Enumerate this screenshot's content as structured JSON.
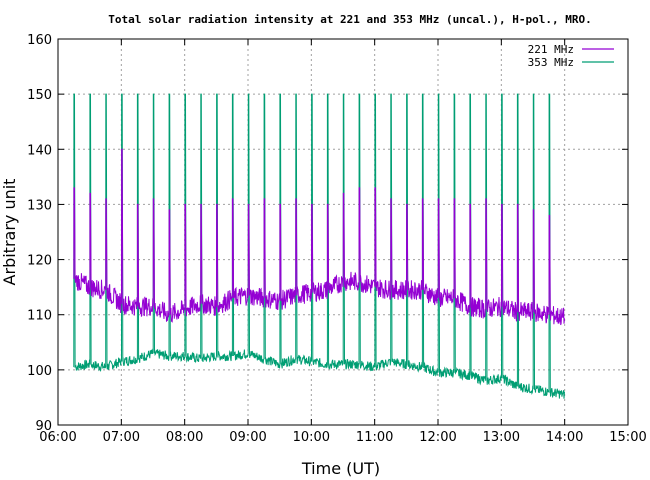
{
  "chart_data": {
    "type": "line",
    "title": "Total solar radiation intensity at 221 and 353 MHz (uncal.), H-pol., MRO.",
    "xlabel": "Time (UT)",
    "ylabel": "Arbitrary unit",
    "xlim": [
      "06:00",
      "15:00"
    ],
    "ylim": [
      90,
      160
    ],
    "xticks": [
      "06:00",
      "07:00",
      "08:00",
      "09:00",
      "10:00",
      "11:00",
      "12:00",
      "13:00",
      "14:00",
      "15:00"
    ],
    "yticks": [
      90,
      100,
      110,
      120,
      130,
      140,
      150,
      160
    ],
    "grid": true,
    "legend_position": "top-right",
    "series": [
      {
        "name": "221 MHz",
        "color": "#9400d3",
        "time_range": [
          "06:15",
          "14:00"
        ],
        "baseline_points": [
          [
            "06:15",
            116.5
          ],
          [
            "06:30",
            115
          ],
          [
            "06:45",
            114.5
          ],
          [
            "07:00",
            112
          ],
          [
            "07:15",
            111.5
          ],
          [
            "07:30",
            111.5
          ],
          [
            "07:45",
            110
          ],
          [
            "08:00",
            111
          ],
          [
            "08:15",
            112
          ],
          [
            "08:30",
            111.5
          ],
          [
            "08:45",
            113
          ],
          [
            "09:00",
            113.5
          ],
          [
            "09:15",
            113
          ],
          [
            "09:30",
            112.5
          ],
          [
            "09:45",
            113.5
          ],
          [
            "10:00",
            114
          ],
          [
            "10:15",
            114.5
          ],
          [
            "10:30",
            116
          ],
          [
            "10:45",
            116
          ],
          [
            "11:00",
            115
          ],
          [
            "11:15",
            114.5
          ],
          [
            "11:30",
            114.5
          ],
          [
            "11:45",
            114.5
          ],
          [
            "12:00",
            113
          ],
          [
            "12:15",
            113
          ],
          [
            "12:30",
            111.5
          ],
          [
            "12:45",
            111
          ],
          [
            "13:00",
            111.5
          ],
          [
            "13:15",
            110.5
          ],
          [
            "13:30",
            110.5
          ],
          [
            "13:45",
            110
          ],
          [
            "14:00",
            109.5
          ]
        ],
        "calibration_peaks": [
          [
            "06:15",
            133
          ],
          [
            "06:30",
            132
          ],
          [
            "06:45",
            131
          ],
          [
            "07:00",
            140
          ],
          [
            "07:15",
            130
          ],
          [
            "07:30",
            131
          ],
          [
            "07:45",
            129
          ],
          [
            "08:00",
            130
          ],
          [
            "08:15",
            130
          ],
          [
            "08:30",
            130
          ],
          [
            "08:45",
            131
          ],
          [
            "09:00",
            130
          ],
          [
            "09:15",
            131
          ],
          [
            "09:30",
            130
          ],
          [
            "09:45",
            131
          ],
          [
            "10:00",
            130
          ],
          [
            "10:15",
            130
          ],
          [
            "10:30",
            132
          ],
          [
            "10:45",
            133
          ],
          [
            "11:00",
            133
          ],
          [
            "11:15",
            131
          ],
          [
            "11:30",
            130
          ],
          [
            "11:45",
            131
          ],
          [
            "12:00",
            131
          ],
          [
            "12:15",
            131
          ],
          [
            "12:30",
            130
          ],
          [
            "12:45",
            131
          ],
          [
            "13:00",
            130
          ],
          [
            "13:15",
            130
          ],
          [
            "13:30",
            129
          ],
          [
            "13:45",
            128
          ]
        ]
      },
      {
        "name": "353 MHz",
        "color": "#009e73",
        "time_range": [
          "06:15",
          "14:00"
        ],
        "baseline_points": [
          [
            "06:15",
            100.5
          ],
          [
            "06:30",
            101
          ],
          [
            "06:45",
            100.5
          ],
          [
            "07:00",
            101.5
          ],
          [
            "07:15",
            102
          ],
          [
            "07:30",
            103
          ],
          [
            "07:45",
            102.5
          ],
          [
            "08:00",
            102.5
          ],
          [
            "08:15",
            102
          ],
          [
            "08:30",
            102.5
          ],
          [
            "08:45",
            102.5
          ],
          [
            "09:00",
            103
          ],
          [
            "09:15",
            102
          ],
          [
            "09:30",
            101
          ],
          [
            "09:45",
            102
          ],
          [
            "10:00",
            101.5
          ],
          [
            "10:15",
            101
          ],
          [
            "10:30",
            101
          ],
          [
            "10:45",
            101
          ],
          [
            "11:00",
            100.5
          ],
          [
            "11:15",
            101.5
          ],
          [
            "11:30",
            101
          ],
          [
            "11:45",
            100.5
          ],
          [
            "12:00",
            99.5
          ],
          [
            "12:15",
            99.5
          ],
          [
            "12:30",
            99
          ],
          [
            "12:45",
            98
          ],
          [
            "13:00",
            98.5
          ],
          [
            "13:15",
            97
          ],
          [
            "13:30",
            96.5
          ],
          [
            "13:45",
            96
          ],
          [
            "14:00",
            95.5
          ]
        ],
        "calibration_peaks": [
          [
            "06:15",
            150
          ],
          [
            "06:30",
            150
          ],
          [
            "06:45",
            150
          ],
          [
            "07:00",
            150
          ],
          [
            "07:15",
            150
          ],
          [
            "07:30",
            150
          ],
          [
            "07:45",
            150
          ],
          [
            "08:00",
            150
          ],
          [
            "08:15",
            150
          ],
          [
            "08:30",
            150
          ],
          [
            "08:45",
            150
          ],
          [
            "09:00",
            150
          ],
          [
            "09:15",
            150
          ],
          [
            "09:30",
            150
          ],
          [
            "09:45",
            150
          ],
          [
            "10:00",
            150
          ],
          [
            "10:15",
            150
          ],
          [
            "10:30",
            150
          ],
          [
            "10:45",
            150
          ],
          [
            "11:00",
            150
          ],
          [
            "11:15",
            150
          ],
          [
            "11:30",
            150
          ],
          [
            "11:45",
            150
          ],
          [
            "12:00",
            150
          ],
          [
            "12:15",
            150
          ],
          [
            "12:30",
            150
          ],
          [
            "12:45",
            150
          ],
          [
            "13:00",
            150
          ],
          [
            "13:15",
            150
          ],
          [
            "13:30",
            150
          ],
          [
            "13:45",
            150
          ]
        ]
      }
    ]
  }
}
